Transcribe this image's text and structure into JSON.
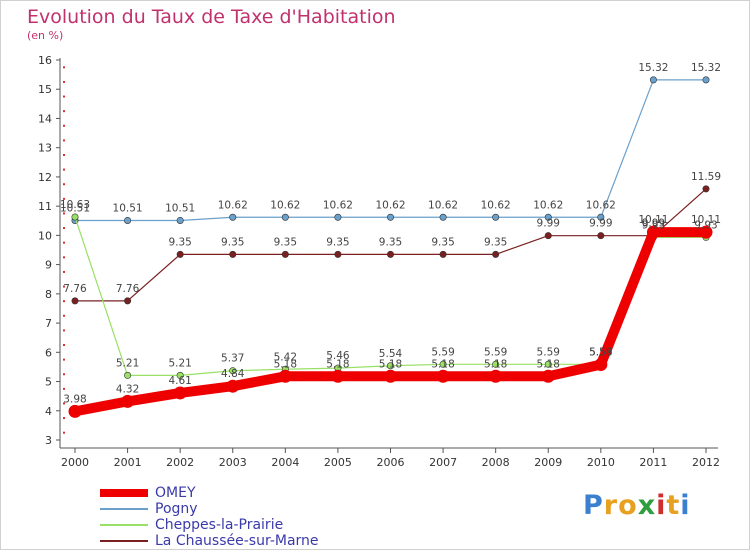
{
  "title": "Evolution du Taux de Taxe d'Habitation",
  "unit": "(en %)",
  "logo": {
    "letters": [
      "P",
      "r",
      "o",
      "x",
      "i",
      "t",
      "i"
    ],
    "colors": [
      "#3a7fd0",
      "#e8a020",
      "#e8a020",
      "#2e9e3e",
      "#d02e2e",
      "#e8a020",
      "#3a7fd0"
    ]
  },
  "chart_data": {
    "type": "line",
    "title": "Evolution du Taux de Taxe d'Habitation",
    "ylabel": "(en %)",
    "xlabel": "",
    "x": [
      "2000",
      "2001",
      "2002",
      "2003",
      "2004",
      "2005",
      "2006",
      "2007",
      "2008",
      "2009",
      "2010",
      "2011",
      "2012"
    ],
    "ylim": [
      3,
      16
    ],
    "yticks": [
      "3",
      "4",
      "5",
      "6",
      "7",
      "8",
      "9",
      "10",
      "11",
      "12",
      "13",
      "14",
      "15",
      "16"
    ],
    "grid": false,
    "legend": "bottom",
    "series": [
      {
        "name": "OMEY",
        "color": "#ee0000",
        "width": 10,
        "values": [
          3.98,
          4.32,
          4.61,
          4.84,
          5.18,
          5.18,
          5.18,
          5.18,
          5.18,
          5.18,
          5.58,
          10.11,
          10.11
        ],
        "labels": [
          "3.98",
          "4.32",
          "4.61",
          "4.84",
          "5.18",
          "5.18",
          "5.18",
          "5.18",
          "5.18",
          "5.18",
          "5.58",
          "10.11",
          "10.11"
        ]
      },
      {
        "name": "Pogny",
        "color": "#6aa0cc",
        "width": 1.2,
        "values": [
          10.51,
          10.51,
          10.51,
          10.62,
          10.62,
          10.62,
          10.62,
          10.62,
          10.62,
          10.62,
          10.62,
          15.32,
          15.32
        ],
        "labels": [
          "10.51",
          "10.51",
          "10.51",
          "10.62",
          "10.62",
          "10.62",
          "10.62",
          "10.62",
          "10.62",
          "10.62",
          "10.62",
          "15.32",
          "15.32"
        ]
      },
      {
        "name": "Cheppes-la-Prairie",
        "color": "#99e066",
        "width": 1.2,
        "values": [
          10.63,
          5.21,
          5.21,
          5.37,
          5.42,
          5.46,
          5.54,
          5.59,
          5.59,
          5.59,
          5.59,
          9.93,
          9.93
        ],
        "labels": [
          "10.63",
          "5.21",
          "5.21",
          "5.37",
          "5.42",
          "5.46",
          "5.54",
          "5.59",
          "5.59",
          "5.59",
          "5.59",
          "9.93",
          "9.93"
        ]
      },
      {
        "name": "La Chaussée-sur-Marne",
        "color": "#7a2020",
        "width": 1.2,
        "values": [
          7.76,
          7.76,
          9.35,
          9.35,
          9.35,
          9.35,
          9.35,
          9.35,
          9.35,
          9.99,
          9.99,
          9.99,
          11.59
        ],
        "labels": [
          "7.76",
          "7.76",
          "9.35",
          "9.35",
          "9.35",
          "9.35",
          "9.35",
          "9.35",
          "9.35",
          "9.99",
          "9.99",
          "9.99",
          "11.59"
        ]
      }
    ]
  }
}
